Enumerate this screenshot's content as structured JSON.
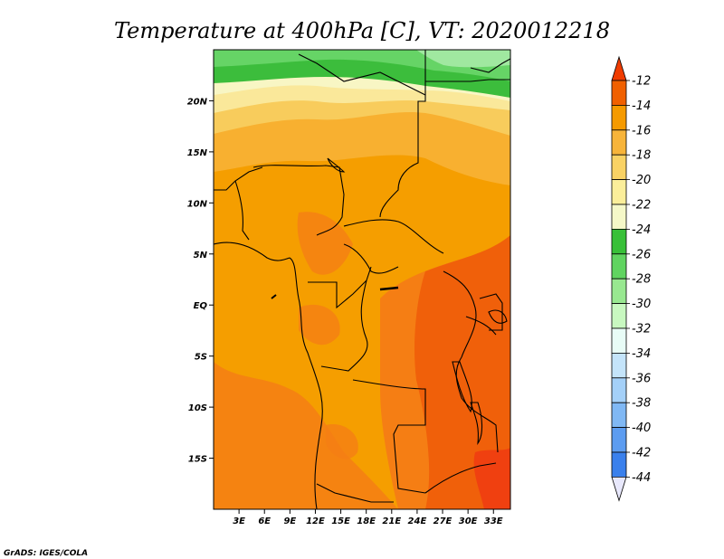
{
  "chart_data": {
    "type": "heatmap",
    "title": "Temperature at 400hPa [C], VT: 2020012218",
    "variable": "Temperature at 400hPa",
    "units": "C",
    "valid_time": "2020012218",
    "x_ticks": [
      "3E",
      "6E",
      "9E",
      "12E",
      "15E",
      "18E",
      "21E",
      "24E",
      "27E",
      "30E",
      "33E"
    ],
    "x_tick_values": [
      3,
      6,
      9,
      12,
      15,
      18,
      21,
      24,
      27,
      30,
      33
    ],
    "y_ticks": [
      "20N",
      "15N",
      "10N",
      "5N",
      "EQ",
      "5S",
      "10S",
      "15S"
    ],
    "y_tick_values": [
      20,
      15,
      10,
      5,
      0,
      -5,
      -10,
      -15
    ],
    "xlim": [
      0,
      35
    ],
    "ylim": [
      -20,
      25
    ],
    "colorbar": {
      "labels": [
        "-12",
        "-14",
        "-16",
        "-18",
        "-20",
        "-22",
        "-24",
        "-26",
        "-28",
        "-30",
        "-32",
        "-34",
        "-36",
        "-38",
        "-40",
        "-42",
        "-44"
      ],
      "levels": [
        -12,
        -14,
        -16,
        -18,
        -20,
        -22,
        -24,
        -26,
        -28,
        -30,
        -32,
        -34,
        -36,
        -38,
        -40,
        -42,
        -44
      ],
      "colors": [
        "#f03c00",
        "#f06000",
        "#f59a00",
        "#f7b43a",
        "#f9d264",
        "#fbee9a",
        "#f5f8c8",
        "#38c038",
        "#60d460",
        "#98e890",
        "#c8f8c0",
        "#e8fcf6",
        "#c4e4fa",
        "#a4d0f8",
        "#80b8f4",
        "#5c9cf0",
        "#3a80ec",
        "#2264dc",
        "#1044b8",
        "#0a2080",
        "#e8e8fc"
      ]
    },
    "map_fields": {
      "background": "#f59e00",
      "warm": "#f57e14",
      "hot": "#f0600a",
      "hottest": "#f04010",
      "band_16": "#f8b030",
      "band_18": "#f8cc5c",
      "band_20": "#fae89a",
      "band_22": "#f8f6c4",
      "green_24": "#3cbd3c",
      "green_26": "#66d466",
      "green_28": "#a0e8a0",
      "border": "#000000"
    },
    "credit": "GrADS: IGES/COLA"
  }
}
